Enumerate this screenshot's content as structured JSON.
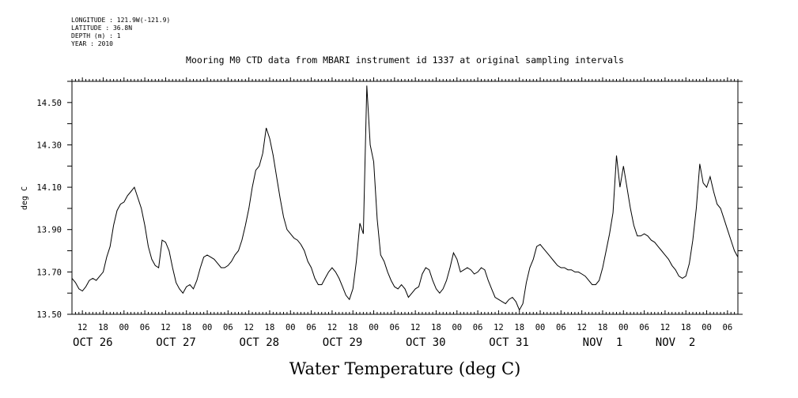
{
  "meta": {
    "longitude": "LONGITUDE : 121.9W(-121.9)",
    "latitude": "LATITUDE : 36.8N",
    "depth": "DEPTH (m) : 1",
    "year": "YEAR : 2010"
  },
  "chart_data": {
    "type": "line",
    "title": "Mooring M0 CTD data from MBARI instrument id 1337 at original sampling intervals",
    "xlabel": "Water Temperature (deg C)",
    "ylabel": "deg C",
    "ylim": [
      13.5,
      14.6
    ],
    "y_ticks": [
      "13.50",
      "13.70",
      "13.90",
      "14.10",
      "14.30",
      "14.50"
    ],
    "xlim": [
      "2010-10-25T09:00",
      "2010-11-02T09:00"
    ],
    "x_hour_labels": [
      {
        "t": "2010-10-25T12:00",
        "label": "12"
      },
      {
        "t": "2010-10-25T18:00",
        "label": "18"
      },
      {
        "t": "2010-10-26T00:00",
        "label": "00"
      },
      {
        "t": "2010-10-26T06:00",
        "label": "06"
      },
      {
        "t": "2010-10-26T12:00",
        "label": "12"
      },
      {
        "t": "2010-10-26T18:00",
        "label": "18"
      },
      {
        "t": "2010-10-27T00:00",
        "label": "00"
      },
      {
        "t": "2010-10-27T06:00",
        "label": "06"
      },
      {
        "t": "2010-10-27T12:00",
        "label": "12"
      },
      {
        "t": "2010-10-27T18:00",
        "label": "18"
      },
      {
        "t": "2010-10-28T00:00",
        "label": "00"
      },
      {
        "t": "2010-10-28T06:00",
        "label": "06"
      },
      {
        "t": "2010-10-28T12:00",
        "label": "12"
      },
      {
        "t": "2010-10-28T18:00",
        "label": "18"
      },
      {
        "t": "2010-10-29T00:00",
        "label": "00"
      },
      {
        "t": "2010-10-29T06:00",
        "label": "06"
      },
      {
        "t": "2010-10-29T12:00",
        "label": "12"
      },
      {
        "t": "2010-10-29T18:00",
        "label": "18"
      },
      {
        "t": "2010-10-30T00:00",
        "label": "00"
      },
      {
        "t": "2010-10-30T06:00",
        "label": "06"
      },
      {
        "t": "2010-10-30T12:00",
        "label": "12"
      },
      {
        "t": "2010-10-30T18:00",
        "label": "18"
      },
      {
        "t": "2010-10-31T00:00",
        "label": "00"
      },
      {
        "t": "2010-10-31T06:00",
        "label": "06"
      },
      {
        "t": "2010-10-31T12:00",
        "label": "12"
      },
      {
        "t": "2010-10-31T18:00",
        "label": "18"
      },
      {
        "t": "2010-11-01T00:00",
        "label": "00"
      },
      {
        "t": "2010-11-01T06:00",
        "label": "06"
      },
      {
        "t": "2010-11-01T12:00",
        "label": "12"
      },
      {
        "t": "2010-11-01T18:00",
        "label": "18"
      },
      {
        "t": "2010-11-02T00:00",
        "label": "00"
      },
      {
        "t": "2010-11-02T06:00",
        "label": "06"
      }
    ],
    "x_day_labels": [
      {
        "t": "2010-10-25T15:00",
        "label": "OCT 26"
      },
      {
        "t": "2010-10-26T15:00",
        "label": "OCT 27"
      },
      {
        "t": "2010-10-27T15:00",
        "label": "OCT 28"
      },
      {
        "t": "2010-10-28T15:00",
        "label": "OCT 29"
      },
      {
        "t": "2010-10-29T15:00",
        "label": "OCT 30"
      },
      {
        "t": "2010-10-30T15:00",
        "label": "OCT 31"
      },
      {
        "t": "2010-10-31T18:00",
        "label": "NOV  1"
      },
      {
        "t": "2010-11-01T15:00",
        "label": "NOV  2"
      }
    ],
    "grid": false,
    "series": [
      {
        "color": "#000000",
        "points": [
          [
            "2010-10-25T09:00",
            13.67
          ],
          [
            "2010-10-25T10:00",
            13.65
          ],
          [
            "2010-10-25T11:00",
            13.62
          ],
          [
            "2010-10-25T12:00",
            13.61
          ],
          [
            "2010-10-25T13:00",
            13.63
          ],
          [
            "2010-10-25T14:00",
            13.66
          ],
          [
            "2010-10-25T15:00",
            13.67
          ],
          [
            "2010-10-25T16:00",
            13.66
          ],
          [
            "2010-10-25T17:00",
            13.68
          ],
          [
            "2010-10-25T18:00",
            13.7
          ],
          [
            "2010-10-25T19:00",
            13.77
          ],
          [
            "2010-10-25T20:00",
            13.82
          ],
          [
            "2010-10-25T21:00",
            13.92
          ],
          [
            "2010-10-25T22:00",
            13.99
          ],
          [
            "2010-10-25T23:00",
            14.02
          ],
          [
            "2010-10-26T00:00",
            14.03
          ],
          [
            "2010-10-26T01:00",
            14.06
          ],
          [
            "2010-10-26T02:00",
            14.08
          ],
          [
            "2010-10-26T03:00",
            14.1
          ],
          [
            "2010-10-26T04:00",
            14.05
          ],
          [
            "2010-10-26T05:00",
            14.0
          ],
          [
            "2010-10-26T06:00",
            13.92
          ],
          [
            "2010-10-26T07:00",
            13.82
          ],
          [
            "2010-10-26T08:00",
            13.76
          ],
          [
            "2010-10-26T09:00",
            13.73
          ],
          [
            "2010-10-26T10:00",
            13.72
          ],
          [
            "2010-10-26T11:00",
            13.85
          ],
          [
            "2010-10-26T12:00",
            13.84
          ],
          [
            "2010-10-26T13:00",
            13.8
          ],
          [
            "2010-10-26T14:00",
            13.72
          ],
          [
            "2010-10-26T15:00",
            13.65
          ],
          [
            "2010-10-26T16:00",
            13.62
          ],
          [
            "2010-10-26T17:00",
            13.6
          ],
          [
            "2010-10-26T18:00",
            13.63
          ],
          [
            "2010-10-26T19:00",
            13.64
          ],
          [
            "2010-10-26T20:00",
            13.62
          ],
          [
            "2010-10-26T21:00",
            13.66
          ],
          [
            "2010-10-26T22:00",
            13.72
          ],
          [
            "2010-10-26T23:00",
            13.77
          ],
          [
            "2010-10-27T00:00",
            13.78
          ],
          [
            "2010-10-27T01:00",
            13.77
          ],
          [
            "2010-10-27T02:00",
            13.76
          ],
          [
            "2010-10-27T03:00",
            13.74
          ],
          [
            "2010-10-27T04:00",
            13.72
          ],
          [
            "2010-10-27T05:00",
            13.72
          ],
          [
            "2010-10-27T06:00",
            13.73
          ],
          [
            "2010-10-27T07:00",
            13.75
          ],
          [
            "2010-10-27T08:00",
            13.78
          ],
          [
            "2010-10-27T09:00",
            13.8
          ],
          [
            "2010-10-27T10:00",
            13.85
          ],
          [
            "2010-10-27T11:00",
            13.92
          ],
          [
            "2010-10-27T12:00",
            14.0
          ],
          [
            "2010-10-27T13:00",
            14.1
          ],
          [
            "2010-10-27T14:00",
            14.18
          ],
          [
            "2010-10-27T15:00",
            14.2
          ],
          [
            "2010-10-27T16:00",
            14.26
          ],
          [
            "2010-10-27T17:00",
            14.38
          ],
          [
            "2010-10-27T18:00",
            14.33
          ],
          [
            "2010-10-27T19:00",
            14.25
          ],
          [
            "2010-10-27T20:00",
            14.15
          ],
          [
            "2010-10-27T21:00",
            14.05
          ],
          [
            "2010-10-27T22:00",
            13.96
          ],
          [
            "2010-10-27T23:00",
            13.9
          ],
          [
            "2010-10-28T00:00",
            13.88
          ],
          [
            "2010-10-28T01:00",
            13.86
          ],
          [
            "2010-10-28T02:00",
            13.85
          ],
          [
            "2010-10-28T03:00",
            13.83
          ],
          [
            "2010-10-28T04:00",
            13.8
          ],
          [
            "2010-10-28T05:00",
            13.75
          ],
          [
            "2010-10-28T06:00",
            13.72
          ],
          [
            "2010-10-28T07:00",
            13.67
          ],
          [
            "2010-10-28T08:00",
            13.64
          ],
          [
            "2010-10-28T09:00",
            13.64
          ],
          [
            "2010-10-28T10:00",
            13.67
          ],
          [
            "2010-10-28T11:00",
            13.7
          ],
          [
            "2010-10-28T12:00",
            13.72
          ],
          [
            "2010-10-28T13:00",
            13.7
          ],
          [
            "2010-10-28T14:00",
            13.67
          ],
          [
            "2010-10-28T15:00",
            13.63
          ],
          [
            "2010-10-28T16:00",
            13.59
          ],
          [
            "2010-10-28T17:00",
            13.57
          ],
          [
            "2010-10-28T18:00",
            13.62
          ],
          [
            "2010-10-28T19:00",
            13.75
          ],
          [
            "2010-10-28T20:00",
            13.93
          ],
          [
            "2010-10-28T21:00",
            13.88
          ],
          [
            "2010-10-28T22:00",
            14.58
          ],
          [
            "2010-10-28T23:00",
            14.3
          ],
          [
            "2010-10-29T00:00",
            14.22
          ],
          [
            "2010-10-29T01:00",
            13.95
          ],
          [
            "2010-10-29T02:00",
            13.78
          ],
          [
            "2010-10-29T03:00",
            13.75
          ],
          [
            "2010-10-29T04:00",
            13.7
          ],
          [
            "2010-10-29T05:00",
            13.66
          ],
          [
            "2010-10-29T06:00",
            13.63
          ],
          [
            "2010-10-29T07:00",
            13.62
          ],
          [
            "2010-10-29T08:00",
            13.64
          ],
          [
            "2010-10-29T09:00",
            13.62
          ],
          [
            "2010-10-29T10:00",
            13.58
          ],
          [
            "2010-10-29T11:00",
            13.6
          ],
          [
            "2010-10-29T12:00",
            13.62
          ],
          [
            "2010-10-29T13:00",
            13.63
          ],
          [
            "2010-10-29T14:00",
            13.69
          ],
          [
            "2010-10-29T15:00",
            13.72
          ],
          [
            "2010-10-29T16:00",
            13.71
          ],
          [
            "2010-10-29T17:00",
            13.66
          ],
          [
            "2010-10-29T18:00",
            13.62
          ],
          [
            "2010-10-29T19:00",
            13.6
          ],
          [
            "2010-10-29T20:00",
            13.62
          ],
          [
            "2010-10-29T21:00",
            13.66
          ],
          [
            "2010-10-29T22:00",
            13.72
          ],
          [
            "2010-10-29T23:00",
            13.79
          ],
          [
            "2010-10-30T00:00",
            13.76
          ],
          [
            "2010-10-30T01:00",
            13.7
          ],
          [
            "2010-10-30T02:00",
            13.71
          ],
          [
            "2010-10-30T03:00",
            13.72
          ],
          [
            "2010-10-30T04:00",
            13.71
          ],
          [
            "2010-10-30T05:00",
            13.69
          ],
          [
            "2010-10-30T06:00",
            13.7
          ],
          [
            "2010-10-30T07:00",
            13.72
          ],
          [
            "2010-10-30T08:00",
            13.71
          ],
          [
            "2010-10-30T09:00",
            13.66
          ],
          [
            "2010-10-30T10:00",
            13.62
          ],
          [
            "2010-10-30T11:00",
            13.58
          ],
          [
            "2010-10-30T12:00",
            13.57
          ],
          [
            "2010-10-30T13:00",
            13.56
          ],
          [
            "2010-10-30T14:00",
            13.55
          ],
          [
            "2010-10-30T15:00",
            13.57
          ],
          [
            "2010-10-30T16:00",
            13.58
          ],
          [
            "2010-10-30T17:00",
            13.56
          ],
          [
            "2010-10-30T18:00",
            13.52
          ],
          [
            "2010-10-30T19:00",
            13.55
          ],
          [
            "2010-10-30T20:00",
            13.65
          ],
          [
            "2010-10-30T21:00",
            13.72
          ],
          [
            "2010-10-30T22:00",
            13.76
          ],
          [
            "2010-10-30T23:00",
            13.82
          ],
          [
            "2010-10-31T00:00",
            13.83
          ],
          [
            "2010-10-31T01:00",
            13.81
          ],
          [
            "2010-10-31T02:00",
            13.79
          ],
          [
            "2010-10-31T03:00",
            13.77
          ],
          [
            "2010-10-31T04:00",
            13.75
          ],
          [
            "2010-10-31T05:00",
            13.73
          ],
          [
            "2010-10-31T06:00",
            13.72
          ],
          [
            "2010-10-31T07:00",
            13.72
          ],
          [
            "2010-10-31T08:00",
            13.71
          ],
          [
            "2010-10-31T09:00",
            13.71
          ],
          [
            "2010-10-31T10:00",
            13.7
          ],
          [
            "2010-10-31T11:00",
            13.7
          ],
          [
            "2010-10-31T12:00",
            13.69
          ],
          [
            "2010-10-31T13:00",
            13.68
          ],
          [
            "2010-10-31T14:00",
            13.66
          ],
          [
            "2010-10-31T15:00",
            13.64
          ],
          [
            "2010-10-31T16:00",
            13.64
          ],
          [
            "2010-10-31T17:00",
            13.66
          ],
          [
            "2010-10-31T18:00",
            13.72
          ],
          [
            "2010-10-31T19:00",
            13.8
          ],
          [
            "2010-10-31T20:00",
            13.88
          ],
          [
            "2010-10-31T21:00",
            13.98
          ],
          [
            "2010-10-31T22:00",
            14.25
          ],
          [
            "2010-10-31T23:00",
            14.1
          ],
          [
            "2010-11-01T00:00",
            14.2
          ],
          [
            "2010-11-01T01:00",
            14.1
          ],
          [
            "2010-11-01T02:00",
            14.0
          ],
          [
            "2010-11-01T03:00",
            13.92
          ],
          [
            "2010-11-01T04:00",
            13.87
          ],
          [
            "2010-11-01T05:00",
            13.87
          ],
          [
            "2010-11-01T06:00",
            13.88
          ],
          [
            "2010-11-01T07:00",
            13.87
          ],
          [
            "2010-11-01T08:00",
            13.85
          ],
          [
            "2010-11-01T09:00",
            13.84
          ],
          [
            "2010-11-01T10:00",
            13.82
          ],
          [
            "2010-11-01T11:00",
            13.8
          ],
          [
            "2010-11-01T12:00",
            13.78
          ],
          [
            "2010-11-01T13:00",
            13.76
          ],
          [
            "2010-11-01T14:00",
            13.73
          ],
          [
            "2010-11-01T15:00",
            13.71
          ],
          [
            "2010-11-01T16:00",
            13.68
          ],
          [
            "2010-11-01T17:00",
            13.67
          ],
          [
            "2010-11-01T18:00",
            13.68
          ],
          [
            "2010-11-01T19:00",
            13.74
          ],
          [
            "2010-11-01T20:00",
            13.85
          ],
          [
            "2010-11-01T21:00",
            14.0
          ],
          [
            "2010-11-01T22:00",
            14.21
          ],
          [
            "2010-11-01T23:00",
            14.12
          ],
          [
            "2010-11-02T00:00",
            14.1
          ],
          [
            "2010-11-02T01:00",
            14.15
          ],
          [
            "2010-11-02T02:00",
            14.08
          ],
          [
            "2010-11-02T03:00",
            14.02
          ],
          [
            "2010-11-02T04:00",
            14.0
          ],
          [
            "2010-11-02T05:00",
            13.95
          ],
          [
            "2010-11-02T06:00",
            13.9
          ],
          [
            "2010-11-02T07:00",
            13.85
          ],
          [
            "2010-11-02T08:00",
            13.8
          ],
          [
            "2010-11-02T09:00",
            13.77
          ]
        ]
      }
    ]
  }
}
